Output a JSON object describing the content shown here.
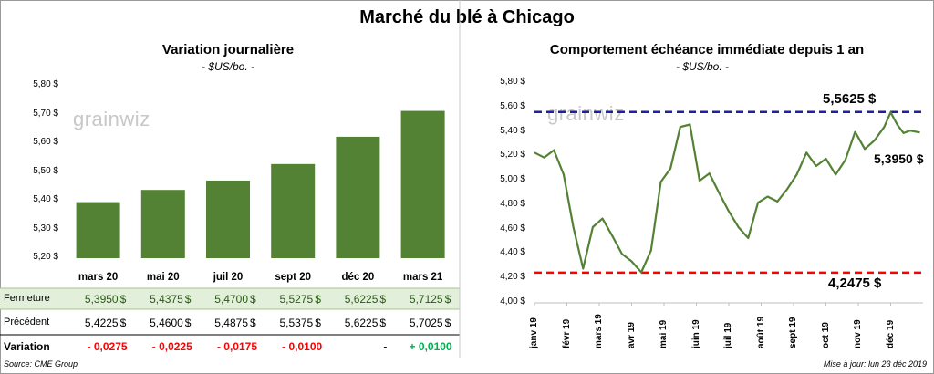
{
  "title": "Marché du blé à Chicago",
  "left": {
    "subtitle": "Variation journalière",
    "unit": "- $US/bo. -",
    "watermark": "grainwiz",
    "row_labels": {
      "close": "Fermeture",
      "prev": "Précédent",
      "change": "Variation"
    },
    "colors": {
      "bar": "#548235",
      "close_bg": "#e2efda",
      "negative": "#ff0000",
      "positive": "#00b050"
    },
    "currency_suffix": "$"
  },
  "right": {
    "subtitle": "Comportement  échéance immédiate depuis 1 an",
    "unit": "- $US/bo. -",
    "watermark": "grainwiz",
    "high_label": "5,5625 $",
    "low_label": "4,2475 $",
    "last_label": "5,3950 $",
    "colors": {
      "line": "#548235",
      "high": "#1f1fa0",
      "low": "#ff0000"
    }
  },
  "footer": {
    "source": "Source: CME Group",
    "updated": "Mise à jour: lun 23 déc 2019"
  },
  "chart_data": [
    {
      "type": "bar",
      "title": "Variation journalière",
      "ylabel": "$US/bo.",
      "ylim": [
        5.2,
        5.8
      ],
      "y_ticks": [
        "5,20 $",
        "5,30 $",
        "5,40 $",
        "5,50 $",
        "5,60 $",
        "5,70 $",
        "5,80 $"
      ],
      "categories": [
        "mars 20",
        "mai 20",
        "juil 20",
        "sept 20",
        "déc 20",
        "mars 21"
      ],
      "values": [
        5.395,
        5.4375,
        5.47,
        5.5275,
        5.6225,
        5.7125
      ],
      "table": {
        "close": [
          "5,3950",
          "5,4375",
          "5,4700",
          "5,5275",
          "5,6225",
          "5,7125"
        ],
        "prev": [
          "5,4225",
          "5,4600",
          "5,4875",
          "5,5375",
          "5,6225",
          "5,7025"
        ],
        "change": [
          "- 0,0275",
          "- 0,0225",
          "- 0,0175",
          "- 0,0100",
          "-",
          "+ 0,0100"
        ]
      }
    },
    {
      "type": "line",
      "title": "Comportement  échéance immédiate depuis 1 an",
      "ylabel": "$US/bo.",
      "ylim": [
        4.0,
        5.8
      ],
      "y_ticks": [
        "4,00 $",
        "4,20 $",
        "4,40 $",
        "4,60 $",
        "4,80 $",
        "5,00 $",
        "5,20 $",
        "5,40 $",
        "5,60 $",
        "5,80 $"
      ],
      "x_ticks": [
        "janv 19",
        "févr 19",
        "mars 19",
        "avr 19",
        "mai 19",
        "juin 19",
        "juil 19",
        "août 19",
        "sept 19",
        "oct 19",
        "nov 19",
        "déc 19"
      ],
      "high": 5.5625,
      "low": 4.2475,
      "last": 5.395,
      "x": [
        0,
        0.3,
        0.6,
        0.9,
        1.2,
        1.5,
        1.8,
        2.1,
        2.4,
        2.7,
        3.0,
        3.3,
        3.6,
        3.9,
        4.2,
        4.5,
        4.8,
        5.1,
        5.4,
        5.7,
        6.0,
        6.3,
        6.6,
        6.9,
        7.2,
        7.5,
        7.8,
        8.1,
        8.4,
        8.7,
        9.0,
        9.3,
        9.6,
        9.9,
        10.2,
        10.5,
        10.8,
        11.0,
        11.2,
        11.4,
        11.6,
        11.8,
        11.9
      ],
      "values": [
        5.23,
        5.19,
        5.25,
        5.05,
        4.62,
        4.28,
        4.62,
        4.69,
        4.55,
        4.4,
        4.34,
        4.25,
        4.43,
        4.99,
        5.1,
        5.44,
        5.46,
        5.0,
        5.06,
        4.9,
        4.75,
        4.62,
        4.53,
        4.82,
        4.87,
        4.83,
        4.93,
        5.05,
        5.23,
        5.12,
        5.18,
        5.05,
        5.17,
        5.4,
        5.26,
        5.33,
        5.44,
        5.56,
        5.46,
        5.39,
        5.41,
        5.4,
        5.395
      ]
    }
  ]
}
